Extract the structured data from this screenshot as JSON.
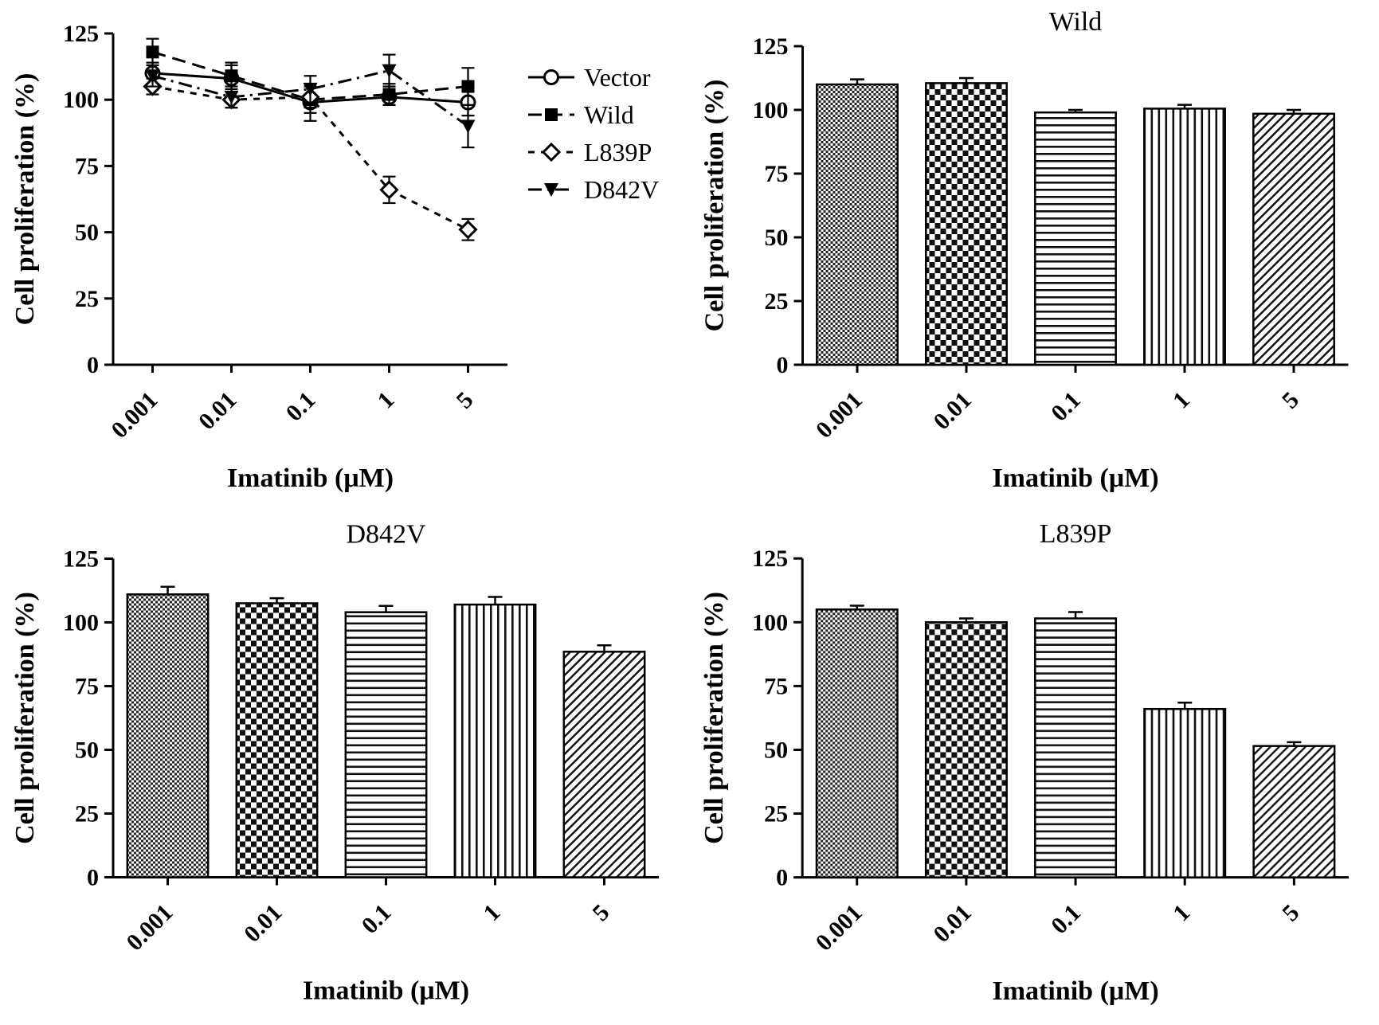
{
  "figure": {
    "background": "#ffffff",
    "ink_color": "#000000"
  },
  "chart_data": [
    {
      "id": "line",
      "type": "line",
      "title": "",
      "xlabel": "Imatinib (μM)",
      "ylabel": "Cell proliferation (%)",
      "categories": [
        "0.001",
        "0.01",
        "0.1",
        "1",
        "5"
      ],
      "ylim": [
        0,
        125
      ],
      "yticks": [
        0,
        25,
        50,
        75,
        100,
        125
      ],
      "grid": false,
      "legend_position": "right",
      "series": [
        {
          "name": "Vector",
          "marker": "circle-open",
          "dash": "solid",
          "values": [
            110,
            108,
            99,
            101,
            99
          ],
          "errors": [
            4,
            5,
            7,
            3,
            5
          ]
        },
        {
          "name": "Wild",
          "marker": "square-filled",
          "dash": "dashed",
          "values": [
            118,
            109,
            100,
            102,
            105
          ],
          "errors": [
            5,
            5,
            5,
            4,
            7
          ]
        },
        {
          "name": "L839P",
          "marker": "diamond-open",
          "dash": "shortdash",
          "values": [
            105,
            100,
            101,
            66,
            51
          ],
          "errors": [
            3,
            3,
            4,
            5,
            4
          ]
        },
        {
          "name": "D842V",
          "marker": "triangle-down-filled",
          "dash": "dashdot",
          "values": [
            109,
            101,
            104,
            111,
            90
          ],
          "errors": [
            4,
            4,
            5,
            6,
            8
          ]
        }
      ]
    },
    {
      "id": "wild",
      "type": "bar",
      "title": "Wild",
      "xlabel": "Imatinib (μM)",
      "ylabel": "Cell proliferation (%)",
      "categories": [
        "0.001",
        "0.01",
        "0.1",
        "1",
        "5"
      ],
      "ylim": [
        0,
        125
      ],
      "yticks": [
        0,
        25,
        50,
        75,
        100,
        125
      ],
      "grid": false,
      "values": [
        110,
        110.5,
        99,
        100.5,
        98.5
      ],
      "errors": [
        2,
        2,
        1,
        1.5,
        1.5
      ],
      "patterns": [
        "fine",
        "checker",
        "hlines",
        "vlines",
        "diag"
      ]
    },
    {
      "id": "d842v",
      "type": "bar",
      "title": "D842V",
      "xlabel": "Imatinib (μM)",
      "ylabel": "Cell proliferation (%)",
      "categories": [
        "0.001",
        "0.01",
        "0.1",
        "1",
        "5"
      ],
      "ylim": [
        0,
        125
      ],
      "yticks": [
        0,
        25,
        50,
        75,
        100,
        125
      ],
      "grid": false,
      "values": [
        111,
        107.5,
        104,
        107,
        88.5
      ],
      "errors": [
        3,
        2,
        2.5,
        3,
        2.5
      ],
      "patterns": [
        "fine",
        "checker",
        "hlines",
        "vlines",
        "diag"
      ]
    },
    {
      "id": "l839p",
      "type": "bar",
      "title": "L839P",
      "xlabel": "Imatinib (μM)",
      "ylabel": "Cell proliferation (%)",
      "categories": [
        "0.001",
        "0.01",
        "0.1",
        "1",
        "5"
      ],
      "ylim": [
        0,
        125
      ],
      "yticks": [
        0,
        25,
        50,
        75,
        100,
        125
      ],
      "grid": false,
      "values": [
        105,
        100,
        101.5,
        66,
        51.5
      ],
      "errors": [
        1.5,
        1.5,
        2.5,
        2.5,
        1.5
      ],
      "patterns": [
        "fine",
        "checker",
        "hlines",
        "vlines",
        "diag"
      ]
    }
  ]
}
